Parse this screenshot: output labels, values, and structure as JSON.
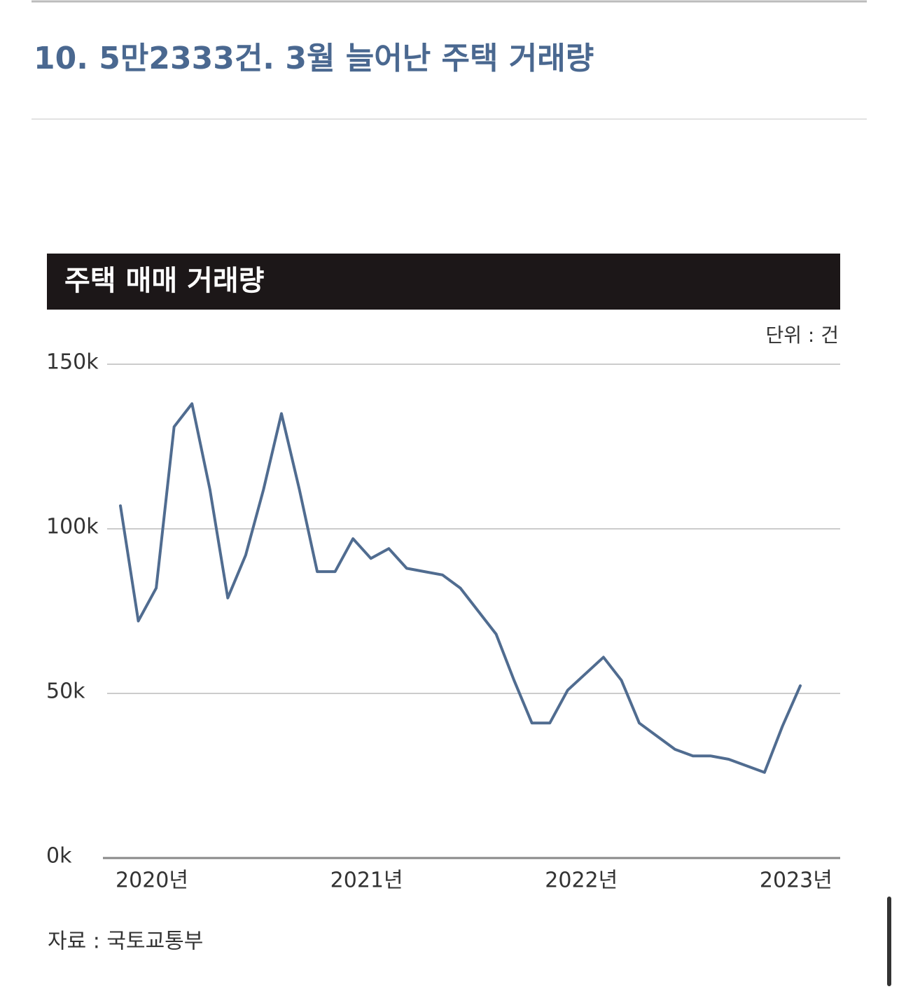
{
  "page_title": "10. 5만2333건. 3월 늘어난 주택 거래량",
  "chart_data": {
    "type": "line",
    "title": "주택 매매 거래량",
    "unit_note": "단위 : 건",
    "source": "자료 : 국토교통부",
    "categories": [
      "2020년",
      null,
      null,
      null,
      null,
      null,
      null,
      null,
      null,
      null,
      null,
      null,
      "2021년",
      null,
      null,
      null,
      null,
      null,
      null,
      null,
      null,
      null,
      null,
      null,
      "2022년",
      null,
      null,
      null,
      null,
      null,
      null,
      null,
      null,
      null,
      null,
      null,
      "2023년",
      null,
      null
    ],
    "series": [
      {
        "name": "주택 매매 거래량",
        "color": "#506c90",
        "values": [
          107,
          72,
          82,
          131,
          138,
          112,
          79,
          92,
          112,
          135,
          112,
          87,
          87,
          97,
          91,
          94,
          88,
          87,
          86,
          82,
          75,
          68,
          54,
          41,
          41,
          51,
          56,
          61,
          54,
          41,
          37,
          33,
          31,
          31,
          30,
          28,
          26,
          40,
          52.333
        ]
      }
    ],
    "ylim": [
      0,
      150
    ],
    "yticks": [
      {
        "value": 0,
        "label": "0k"
      },
      {
        "value": 50,
        "label": "50k"
      },
      {
        "value": 100,
        "label": "100k"
      },
      {
        "value": 150,
        "label": "150k"
      }
    ],
    "grid": true
  }
}
